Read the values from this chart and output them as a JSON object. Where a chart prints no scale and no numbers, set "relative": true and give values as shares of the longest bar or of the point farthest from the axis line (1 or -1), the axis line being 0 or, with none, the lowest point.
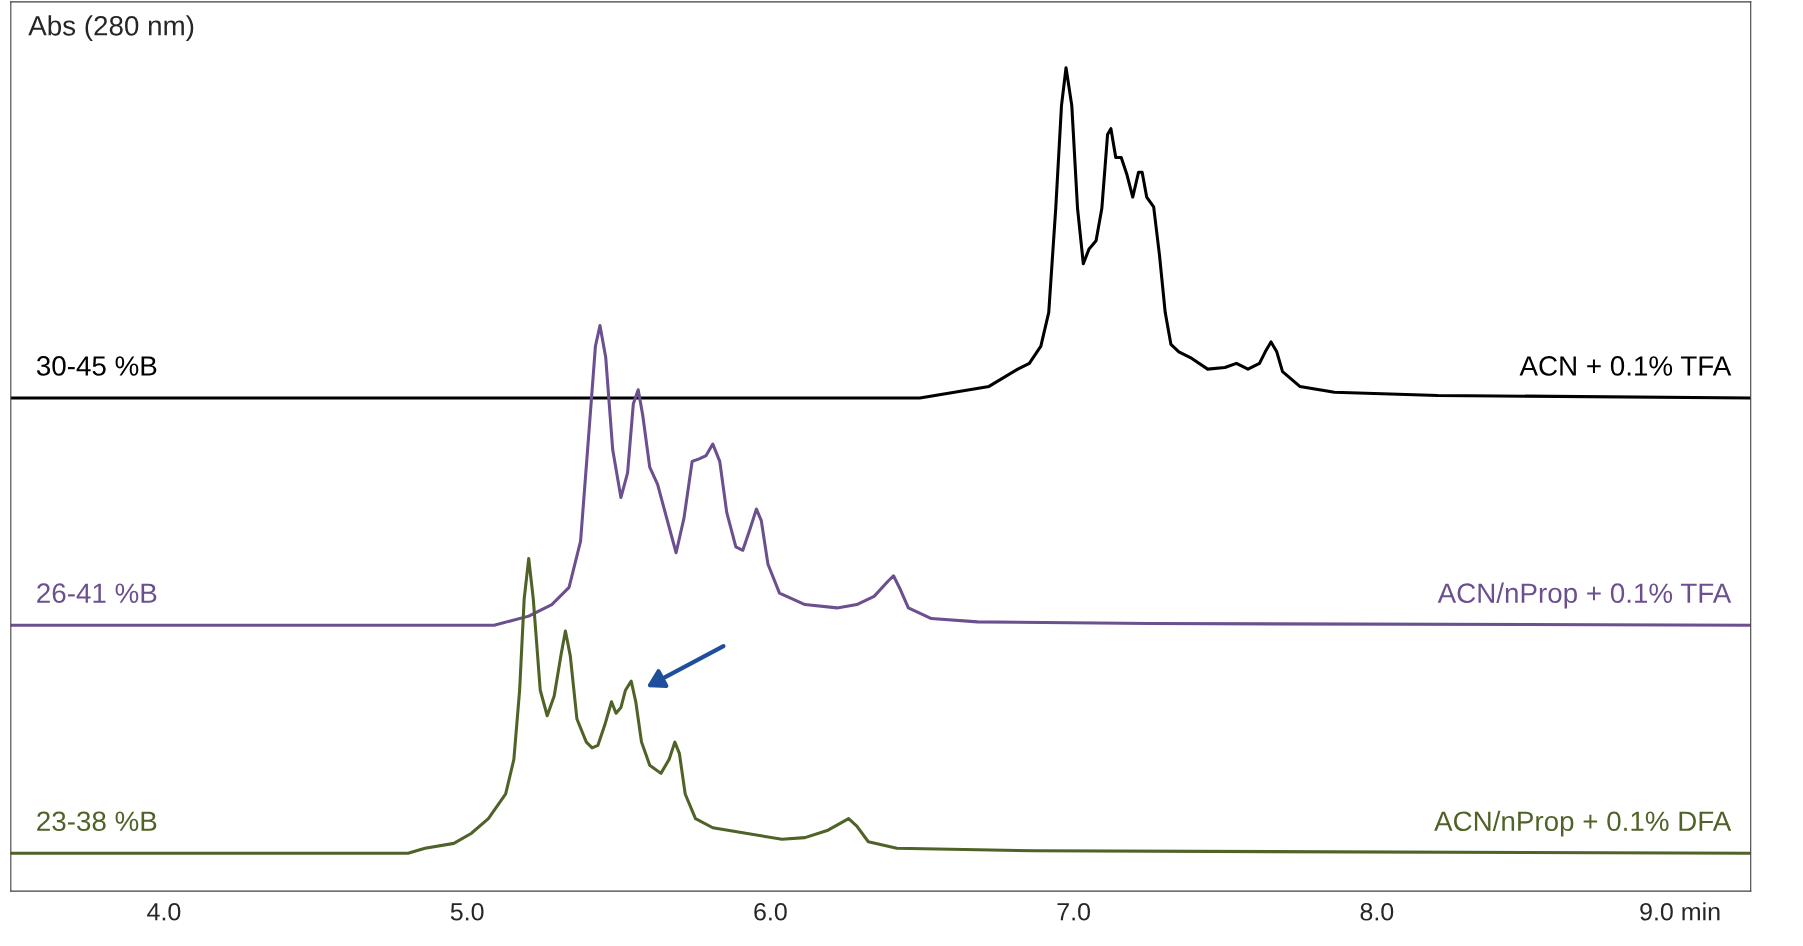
{
  "chart_data": {
    "type": "line",
    "relative": true,
    "ylabel": "Abs (280 nm)",
    "grid": false,
    "xlim": [
      3.495,
      9.233
    ],
    "xticks": [
      {
        "value": 4,
        "label": "4.0"
      },
      {
        "value": 5,
        "label": "5.0"
      },
      {
        "value": 6,
        "label": "6.0"
      },
      {
        "value": 7,
        "label": "7.0"
      },
      {
        "value": 8,
        "label": "8.0"
      },
      {
        "value": 9,
        "label": "9.0 min"
      }
    ],
    "annotations": [
      "30-45 %B",
      "26-41 %B",
      "23-38 %B"
    ],
    "series": [
      {
        "name": "ACN + 0.1% TFA",
        "color": "#000000",
        "x": [
          3.495,
          6.493,
          6.607,
          6.721,
          6.816,
          6.854,
          6.892,
          6.918,
          6.941,
          6.96,
          6.975,
          6.994,
          7.013,
          7.032,
          7.051,
          7.074,
          7.093,
          7.112,
          7.123,
          7.139,
          7.157,
          7.176,
          7.195,
          7.214,
          7.226,
          7.241,
          7.264,
          7.283,
          7.302,
          7.321,
          7.347,
          7.385,
          7.442,
          7.499,
          7.537,
          7.575,
          7.613,
          7.632,
          7.651,
          7.67,
          7.689,
          7.746,
          7.86,
          8.201,
          9.233
        ],
        "values": [
          0.599,
          0.599,
          0.606,
          0.613,
          0.634,
          0.641,
          0.662,
          0.703,
          0.829,
          0.954,
          1.0,
          0.954,
          0.829,
          0.762,
          0.78,
          0.79,
          0.829,
          0.919,
          0.926,
          0.891,
          0.891,
          0.87,
          0.843,
          0.873,
          0.873,
          0.843,
          0.831,
          0.773,
          0.703,
          0.664,
          0.655,
          0.648,
          0.634,
          0.636,
          0.641,
          0.634,
          0.641,
          0.655,
          0.667,
          0.655,
          0.631,
          0.613,
          0.606,
          0.602,
          0.599
        ]
      },
      {
        "name": "ACN/nProp + 0.1% TFA",
        "color": "#6b4f8f",
        "x": [
          3.495,
          5.089,
          5.203,
          5.279,
          5.336,
          5.374,
          5.4,
          5.423,
          5.438,
          5.457,
          5.48,
          5.507,
          5.529,
          5.548,
          5.564,
          5.579,
          5.602,
          5.628,
          5.658,
          5.689,
          5.715,
          5.742,
          5.765,
          5.788,
          5.81,
          5.833,
          5.856,
          5.886,
          5.909,
          5.932,
          5.954,
          5.97,
          5.992,
          6.03,
          6.114,
          6.22,
          6.285,
          6.342,
          6.387,
          6.406,
          6.429,
          6.455,
          6.531,
          6.683,
          7.252,
          9.233
        ],
        "values": [
          0.323,
          0.323,
          0.334,
          0.348,
          0.369,
          0.425,
          0.55,
          0.662,
          0.687,
          0.648,
          0.536,
          0.478,
          0.508,
          0.592,
          0.609,
          0.578,
          0.515,
          0.494,
          0.453,
          0.411,
          0.453,
          0.522,
          0.525,
          0.529,
          0.543,
          0.522,
          0.46,
          0.418,
          0.414,
          0.439,
          0.464,
          0.45,
          0.397,
          0.362,
          0.348,
          0.344,
          0.348,
          0.358,
          0.376,
          0.383,
          0.366,
          0.344,
          0.331,
          0.327,
          0.325,
          0.323
        ]
      },
      {
        "name": "ACN/nProp + 0.1% DFA",
        "color": "#4f6228",
        "x": [
          3.495,
          4.805,
          4.861,
          4.956,
          5.013,
          5.07,
          5.127,
          5.154,
          5.173,
          5.188,
          5.203,
          5.218,
          5.241,
          5.264,
          5.287,
          5.309,
          5.324,
          5.34,
          5.362,
          5.393,
          5.412,
          5.431,
          5.454,
          5.476,
          5.491,
          5.507,
          5.522,
          5.541,
          5.556,
          5.575,
          5.602,
          5.639,
          5.666,
          5.685,
          5.7,
          5.719,
          5.753,
          5.81,
          5.924,
          6.038,
          6.114,
          6.19,
          6.258,
          6.285,
          6.323,
          6.417,
          6.873,
          9.233
        ],
        "values": [
          0.046,
          0.046,
          0.052,
          0.058,
          0.07,
          0.088,
          0.118,
          0.16,
          0.244,
          0.355,
          0.404,
          0.355,
          0.244,
          0.213,
          0.237,
          0.286,
          0.316,
          0.286,
          0.209,
          0.181,
          0.174,
          0.177,
          0.202,
          0.23,
          0.216,
          0.223,
          0.244,
          0.255,
          0.23,
          0.181,
          0.153,
          0.143,
          0.16,
          0.181,
          0.167,
          0.118,
          0.088,
          0.077,
          0.07,
          0.063,
          0.065,
          0.074,
          0.088,
          0.079,
          0.06,
          0.052,
          0.049,
          0.046
        ]
      }
    ]
  }
}
